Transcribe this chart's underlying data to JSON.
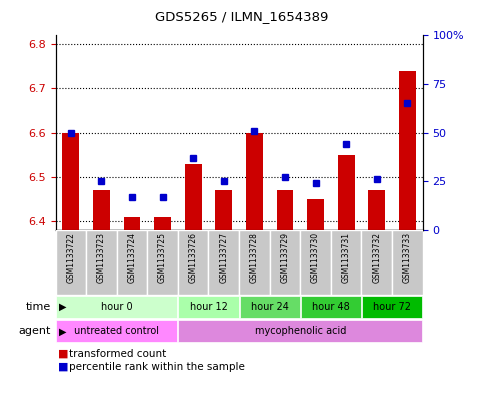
{
  "title": "GDS5265 / ILMN_1654389",
  "samples": [
    "GSM1133722",
    "GSM1133723",
    "GSM1133724",
    "GSM1133725",
    "GSM1133726",
    "GSM1133727",
    "GSM1133728",
    "GSM1133729",
    "GSM1133730",
    "GSM1133731",
    "GSM1133732",
    "GSM1133733"
  ],
  "transformed_count": [
    6.6,
    6.47,
    6.41,
    6.41,
    6.53,
    6.47,
    6.6,
    6.47,
    6.45,
    6.55,
    6.47,
    6.74
  ],
  "percentile_rank": [
    50,
    25,
    17,
    17,
    37,
    25,
    51,
    27,
    24,
    44,
    26,
    65
  ],
  "ylim_left": [
    6.38,
    6.82
  ],
  "ylim_right": [
    0,
    100
  ],
  "yticks_left": [
    6.4,
    6.5,
    6.6,
    6.7,
    6.8
  ],
  "yticks_right": [
    0,
    25,
    50,
    75,
    100
  ],
  "time_groups": [
    {
      "label": "hour 0",
      "start": 0,
      "end": 4,
      "color": "#ccffcc"
    },
    {
      "label": "hour 12",
      "start": 4,
      "end": 6,
      "color": "#aaffaa"
    },
    {
      "label": "hour 24",
      "start": 6,
      "end": 8,
      "color": "#66dd66"
    },
    {
      "label": "hour 48",
      "start": 8,
      "end": 10,
      "color": "#33cc33"
    },
    {
      "label": "hour 72",
      "start": 10,
      "end": 12,
      "color": "#00bb00"
    }
  ],
  "agent_groups": [
    {
      "label": "untreated control",
      "start": 0,
      "end": 4,
      "color": "#ff88ff"
    },
    {
      "label": "mycophenolic acid",
      "start": 4,
      "end": 12,
      "color": "#dd88dd"
    }
  ],
  "bar_color": "#cc0000",
  "dot_color": "#0000cc",
  "left_label_color": "#cc0000",
  "right_label_color": "#0000cc",
  "background_color": "#ffffff",
  "grid_color": "#000000",
  "sample_bg_color": "#c8c8c8",
  "bar_width": 0.55
}
